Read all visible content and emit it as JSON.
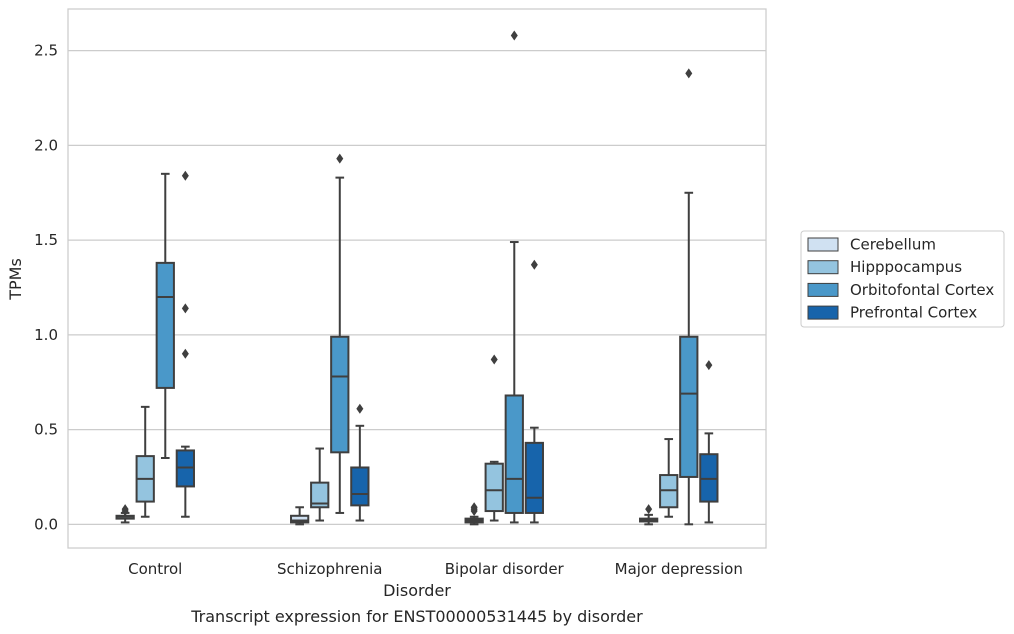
{
  "chart_data": {
    "type": "box",
    "title": "",
    "caption": "Transcript expression for ENST00000531445 by disorder",
    "xlabel": "Disorder",
    "ylabel": "TPMs",
    "ylim": [
      -0.125,
      2.72
    ],
    "yticks": [
      "0.0",
      "0.5",
      "1.0",
      "1.5",
      "2.0",
      "2.5"
    ],
    "ytick_values": [
      0,
      0.5,
      1.0,
      1.5,
      2.0,
      2.5
    ],
    "grid": "horizontal",
    "legend_placement": "right",
    "categories": [
      "Control",
      "Schizophrenia",
      "Bipolar disorder",
      "Major depression"
    ],
    "series": [
      {
        "name": "Cerebellum",
        "color": "#d0e1f2",
        "boxes": [
          {
            "whislo": 0.01,
            "q1": 0.03,
            "med": 0.04,
            "q3": 0.045,
            "whishi": 0.06,
            "fliers": [
              0.08,
              0.07
            ]
          },
          {
            "whislo": 0.0,
            "q1": 0.01,
            "med": 0.02,
            "q3": 0.045,
            "whishi": 0.09,
            "fliers": []
          },
          {
            "whislo": 0.0,
            "q1": 0.01,
            "med": 0.02,
            "q3": 0.03,
            "whishi": 0.04,
            "fliers": [
              0.09,
              0.08,
              0.07
            ]
          },
          {
            "whislo": 0.0,
            "q1": 0.015,
            "med": 0.02,
            "q3": 0.03,
            "whishi": 0.05,
            "fliers": [
              0.08
            ]
          }
        ]
      },
      {
        "name": "Hipppocampus",
        "color": "#94c4df",
        "boxes": [
          {
            "whislo": 0.04,
            "q1": 0.12,
            "med": 0.24,
            "q3": 0.36,
            "whishi": 0.62,
            "fliers": []
          },
          {
            "whislo": 0.02,
            "q1": 0.09,
            "med": 0.11,
            "q3": 0.22,
            "whishi": 0.4,
            "fliers": []
          },
          {
            "whislo": 0.02,
            "q1": 0.07,
            "med": 0.18,
            "q3": 0.32,
            "whishi": 0.33,
            "fliers": [
              0.87
            ]
          },
          {
            "whislo": 0.04,
            "q1": 0.09,
            "med": 0.18,
            "q3": 0.26,
            "whishi": 0.45,
            "fliers": []
          }
        ]
      },
      {
        "name": "Orbitofontal Cortex",
        "color": "#4a98c9",
        "boxes": [
          {
            "whislo": 0.35,
            "q1": 0.72,
            "med": 1.2,
            "q3": 1.38,
            "whishi": 1.85,
            "fliers": []
          },
          {
            "whislo": 0.06,
            "q1": 0.38,
            "med": 0.78,
            "q3": 0.99,
            "whishi": 1.83,
            "fliers": [
              1.93
            ]
          },
          {
            "whislo": 0.01,
            "q1": 0.06,
            "med": 0.24,
            "q3": 0.68,
            "whishi": 1.49,
            "fliers": [
              2.58
            ]
          },
          {
            "whislo": 0.0,
            "q1": 0.25,
            "med": 0.69,
            "q3": 0.99,
            "whishi": 1.75,
            "fliers": [
              2.38
            ]
          }
        ]
      },
      {
        "name": "Prefrontal Cortex",
        "color": "#1764ab",
        "boxes": [
          {
            "whislo": 0.04,
            "q1": 0.2,
            "med": 0.3,
            "q3": 0.39,
            "whishi": 0.41,
            "fliers": [
              1.84,
              1.14,
              0.9
            ]
          },
          {
            "whislo": 0.02,
            "q1": 0.1,
            "med": 0.16,
            "q3": 0.3,
            "whishi": 0.52,
            "fliers": [
              0.61
            ]
          },
          {
            "whislo": 0.01,
            "q1": 0.06,
            "med": 0.14,
            "q3": 0.43,
            "whishi": 0.51,
            "fliers": [
              1.37
            ]
          },
          {
            "whislo": 0.01,
            "q1": 0.12,
            "med": 0.24,
            "q3": 0.37,
            "whishi": 0.48,
            "fliers": [
              0.84
            ]
          }
        ]
      }
    ]
  }
}
